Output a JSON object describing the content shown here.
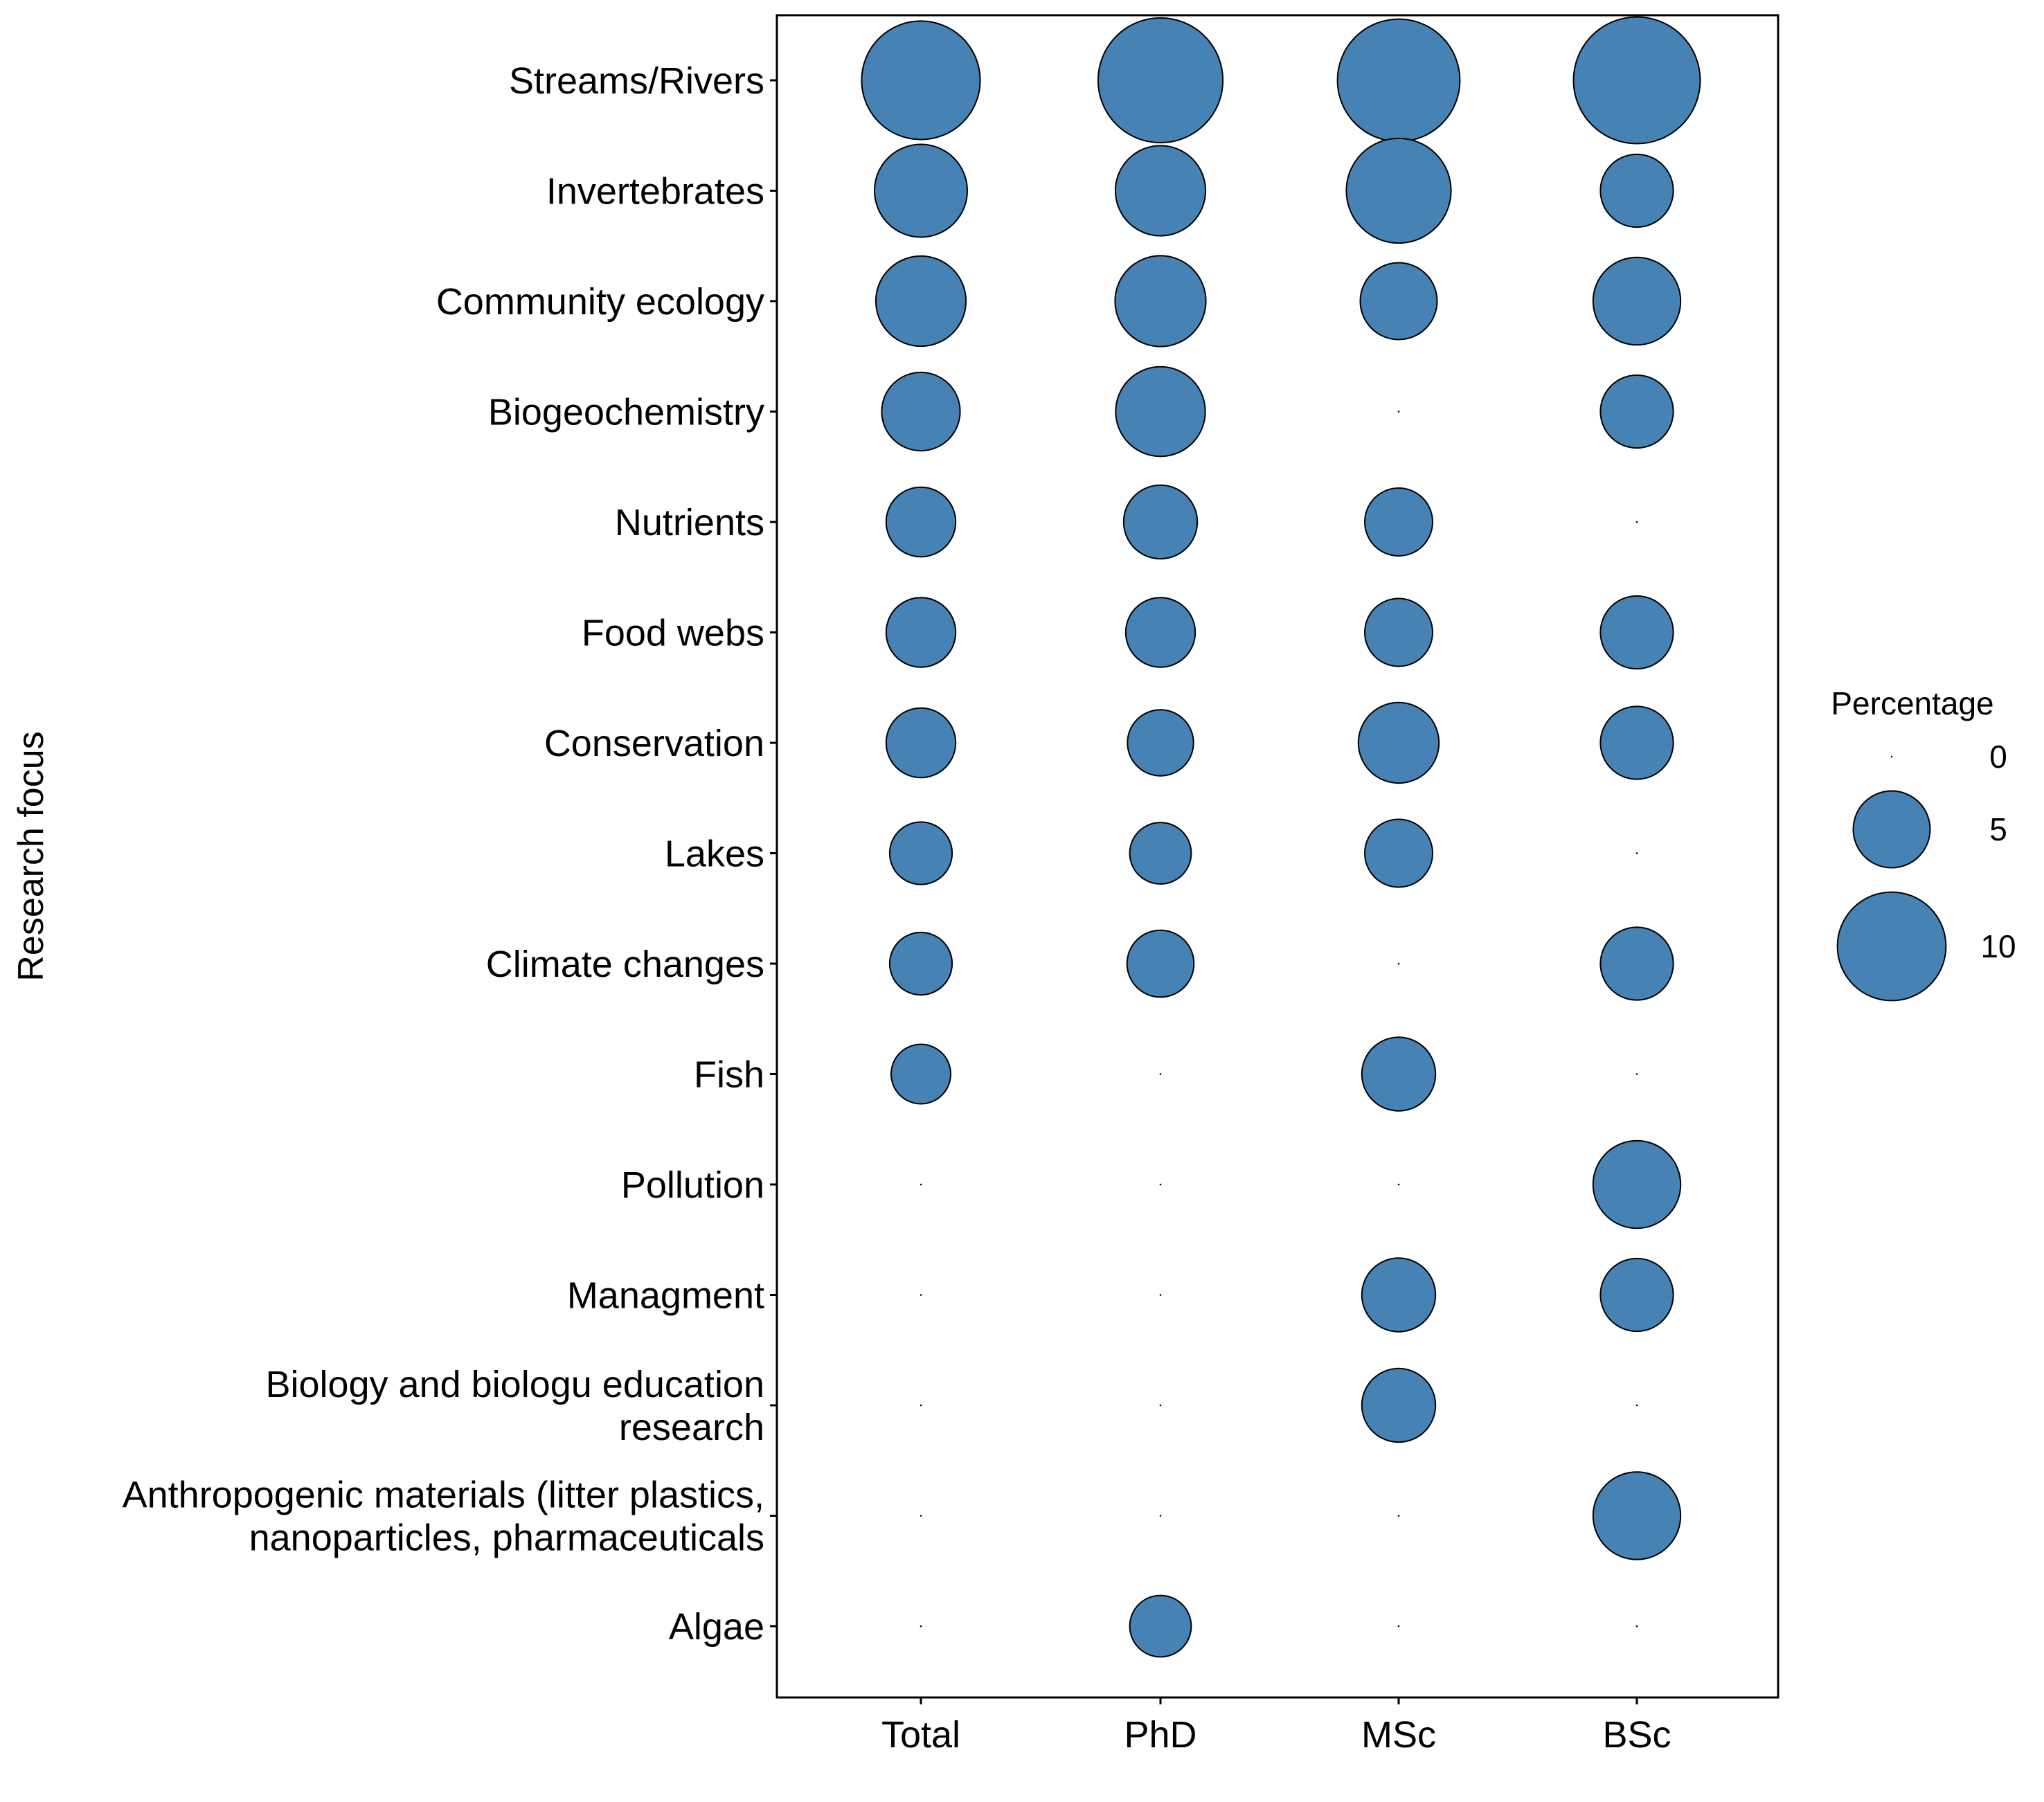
{
  "chart_data": {
    "type": "bubble",
    "ylabel": "Research focus",
    "xlabel": "",
    "categories_x": [
      "Total",
      "PhD",
      "MSc",
      "BSc"
    ],
    "categories_y": [
      "Streams/Rivers",
      "Invertebrates",
      "Community ecology",
      "Biogeochemistry",
      "Nutrients",
      "Food webs",
      "Conservation",
      "Lakes",
      "Climate changes",
      "Fish",
      "Pollution",
      "Managment",
      "Biology and biologu education research",
      "Anthropogenic materials (litter plastics, nanoparticles, pharmaceuticals",
      "Algae"
    ],
    "y_tick_lines": [
      [
        "Streams/Rivers"
      ],
      [
        "Invertebrates"
      ],
      [
        "Community ecology"
      ],
      [
        "Biogeochemistry"
      ],
      [
        "Nutrients"
      ],
      [
        "Food webs"
      ],
      [
        "Conservation"
      ],
      [
        "Lakes"
      ],
      [
        "Climate changes"
      ],
      [
        "Fish"
      ],
      [
        "Pollution"
      ],
      [
        "Managment"
      ],
      [
        "Biology and biologu education",
        "research"
      ],
      [
        "Anthropogenic materials (litter plastics,",
        "nanoparticles, pharmaceuticals"
      ],
      [
        "Algae"
      ]
    ],
    "values": [
      [
        11.9,
        13.2,
        12.7,
        13.6
      ],
      [
        7.3,
        6.9,
        9.3,
        4.5
      ],
      [
        6.9,
        7.0,
        5.0,
        6.5
      ],
      [
        5.2,
        6.8,
        0,
        4.5
      ],
      [
        4.1,
        4.6,
        3.9,
        0
      ],
      [
        4.1,
        4.1,
        3.9,
        4.5
      ],
      [
        4.1,
        3.7,
        5.5,
        4.5
      ],
      [
        3.3,
        3.2,
        3.9,
        0
      ],
      [
        3.3,
        3.8,
        0,
        4.5
      ],
      [
        3.0,
        0,
        4.6,
        0
      ],
      [
        0,
        0,
        0,
        6.5
      ],
      [
        0,
        0,
        4.6,
        4.5
      ],
      [
        0,
        0,
        4.6,
        0
      ],
      [
        0,
        0,
        0,
        6.5
      ],
      [
        0,
        3.2,
        0,
        0
      ]
    ],
    "size_legend": {
      "title": "Percentage",
      "breaks": [
        0,
        5,
        10
      ],
      "labels": [
        "0",
        "5",
        "10"
      ]
    },
    "colors": {
      "fill": "#4682B4",
      "stroke": "#000000"
    },
    "grid": false,
    "legend_position": "right"
  }
}
